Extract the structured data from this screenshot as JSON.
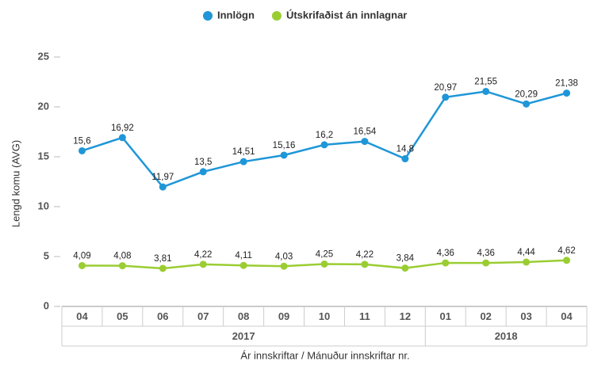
{
  "chart_data": {
    "type": "line",
    "legend": "top",
    "y_label": "Lengd komu (AVG)",
    "x_label": "Ár innskriftar / Mánuður innskriftar nr.",
    "categories": [
      "04",
      "05",
      "06",
      "07",
      "08",
      "09",
      "10",
      "11",
      "12",
      "01",
      "02",
      "03",
      "04"
    ],
    "groups": [
      {
        "label": "2017",
        "count": 9
      },
      {
        "label": "2018",
        "count": 4
      }
    ],
    "series": [
      {
        "name": "Innlögn",
        "color": "#1f96d8",
        "values": [
          15.6,
          16.92,
          11.97,
          13.5,
          14.51,
          15.16,
          16.2,
          16.54,
          14.8,
          20.97,
          21.55,
          20.29,
          21.38
        ],
        "value_labels": [
          "15,6",
          "16,92",
          "11,97",
          "13,5",
          "14,51",
          "15,16",
          "16,2",
          "16,54",
          "14,8",
          "20,97",
          "21,55",
          "20,29",
          "21,38"
        ]
      },
      {
        "name": "Útskrifaðist án innlagnar",
        "color": "#9acd32",
        "values": [
          4.09,
          4.08,
          3.81,
          4.22,
          4.11,
          4.03,
          4.25,
          4.22,
          3.84,
          4.36,
          4.36,
          4.44,
          4.62
        ],
        "value_labels": [
          "4,09",
          "4,08",
          "3,81",
          "4,22",
          "4,11",
          "4,03",
          "4,25",
          "4,22",
          "3,84",
          "4,36",
          "4,36",
          "4,44",
          "4,62"
        ]
      }
    ],
    "ylim": [
      0,
      25
    ],
    "yticks": [
      0,
      5,
      10,
      15,
      20,
      25
    ],
    "grid": false
  }
}
